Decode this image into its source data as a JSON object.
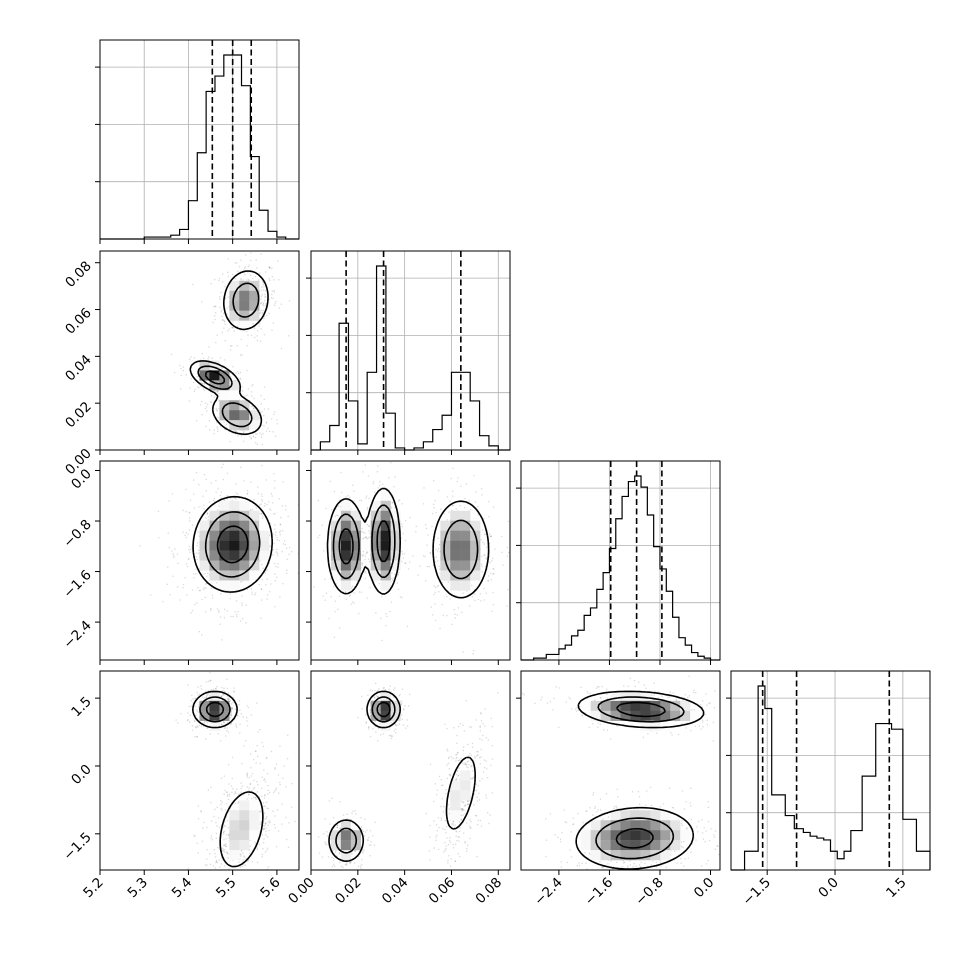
{
  "chart_data": {
    "type": "corner",
    "parameters": [
      {
        "range": [
          5.2,
          5.65
        ],
        "ticks": [
          5.2,
          5.3,
          5.4,
          5.5,
          5.6
        ],
        "tick_labels": [
          "5.2",
          "5.3",
          "5.4",
          "5.5",
          "5.6"
        ],
        "quantiles": [
          5.454,
          5.5,
          5.542
        ]
      },
      {
        "range": [
          0.0,
          0.085
        ],
        "ticks": [
          0.0,
          0.02,
          0.04,
          0.06,
          0.08
        ],
        "tick_labels": [
          "0.00",
          "0.02",
          "0.04",
          "0.06",
          "0.08"
        ],
        "quantiles": [
          0.015,
          0.031,
          0.064
        ]
      },
      {
        "range": [
          -3.0,
          0.15
        ],
        "ticks": [
          -2.4,
          -1.6,
          -0.8,
          0.0
        ],
        "tick_labels": [
          "−2.4",
          "−1.6",
          "−0.8",
          "0.0"
        ],
        "quantiles": [
          -1.58,
          -1.17,
          -0.77
        ]
      },
      {
        "range": [
          -2.3,
          2.1
        ],
        "ticks": [
          -1.5,
          0.0,
          1.5
        ],
        "tick_labels": [
          "−1.5",
          "0.0",
          "1.5"
        ],
        "quantiles": [
          -1.6,
          -0.85,
          1.2
        ]
      }
    ],
    "histograms": [
      {
        "edges": [
          5.2,
          5.3,
          5.36,
          5.38,
          5.4,
          5.42,
          5.44,
          5.46,
          5.48,
          5.5,
          5.52,
          5.54,
          5.56,
          5.58,
          5.6,
          5.62,
          5.65
        ],
        "counts": [
          0,
          1,
          2,
          5,
          20,
          45,
          77,
          85,
          96,
          96,
          80,
          43,
          15,
          4,
          1,
          0
        ]
      },
      {
        "edges": [
          0.0,
          0.004,
          0.008,
          0.012,
          0.016,
          0.02,
          0.024,
          0.028,
          0.032,
          0.036,
          0.04,
          0.044,
          0.048,
          0.052,
          0.056,
          0.06,
          0.064,
          0.068,
          0.072,
          0.076,
          0.08,
          0.085
        ],
        "counts": [
          0,
          4,
          12,
          62,
          24,
          3,
          38,
          90,
          18,
          1,
          0,
          1,
          4,
          10,
          17,
          38,
          38,
          24,
          7,
          2,
          0
        ]
      },
      {
        "edges": [
          -3.0,
          -2.8,
          -2.6,
          -2.4,
          -2.3,
          -2.2,
          -2.1,
          -2.0,
          -1.9,
          -1.8,
          -1.7,
          -1.6,
          -1.5,
          -1.4,
          -1.3,
          -1.2,
          -1.1,
          -1.0,
          -0.9,
          -0.8,
          -0.7,
          -0.6,
          -0.5,
          -0.4,
          -0.3,
          -0.2,
          -0.1,
          0.0,
          0.15
        ],
        "counts": [
          0,
          1,
          3,
          6,
          8,
          13,
          16,
          24,
          28,
          38,
          47,
          60,
          76,
          88,
          96,
          99,
          93,
          78,
          61,
          49,
          37,
          23,
          12,
          8,
          4,
          2,
          1,
          0
        ]
      },
      {
        "edges": [
          -2.3,
          -2.0,
          -1.7,
          -1.55,
          -1.4,
          -1.1,
          -0.9,
          -0.7,
          -0.55,
          -0.4,
          -0.25,
          -0.1,
          0.05,
          0.2,
          0.35,
          0.6,
          0.9,
          1.25,
          1.5,
          1.8,
          2.1
        ],
        "counts": [
          0,
          10,
          98,
          86,
          40,
          29,
          22,
          20,
          18,
          17,
          16,
          10,
          6,
          10,
          21,
          50,
          78,
          75,
          27,
          10
        ]
      }
    ],
    "pair_modes": [
      {
        "x": 0,
        "y": 1,
        "modes": [
          {
            "cx": 5.53,
            "cy": 0.064,
            "sx": 0.028,
            "sy": 0.007,
            "rho": 0.1,
            "w": 0.4
          },
          {
            "cx": 5.46,
            "cy": 0.031,
            "sx": 0.028,
            "sy": 0.0035,
            "rho": -0.5,
            "w": 0.3
          },
          {
            "cx": 5.51,
            "cy": 0.015,
            "sx": 0.03,
            "sy": 0.0045,
            "rho": -0.3,
            "w": 0.3
          }
        ]
      },
      {
        "x": 0,
        "y": 2,
        "modes": [
          {
            "cx": 5.5,
            "cy": -1.17,
            "sx": 0.045,
            "sy": 0.38,
            "rho": 0.05,
            "w": 1.0
          }
        ]
      },
      {
        "x": 1,
        "y": 2,
        "modes": [
          {
            "cx": 0.015,
            "cy": -1.2,
            "sx": 0.004,
            "sy": 0.38,
            "rho": 0.0,
            "w": 0.3
          },
          {
            "cx": 0.031,
            "cy": -1.12,
            "sx": 0.0035,
            "sy": 0.42,
            "rho": 0.0,
            "w": 0.3
          },
          {
            "cx": 0.064,
            "cy": -1.25,
            "sx": 0.0065,
            "sy": 0.42,
            "rho": 0.0,
            "w": 0.4
          }
        ]
      },
      {
        "x": 0,
        "y": 3,
        "modes": [
          {
            "cx": 5.46,
            "cy": 1.25,
            "sx": 0.025,
            "sy": 0.2,
            "rho": 0.0,
            "w": 0.4
          },
          {
            "cx": 5.52,
            "cy": -1.4,
            "sx": 0.035,
            "sy": 0.6,
            "rho": 0.35,
            "w": 0.6
          }
        ]
      },
      {
        "x": 1,
        "y": 3,
        "modes": [
          {
            "cx": 0.031,
            "cy": 1.25,
            "sx": 0.0035,
            "sy": 0.2,
            "rho": 0.0,
            "w": 0.3
          },
          {
            "cx": 0.015,
            "cy": -1.65,
            "sx": 0.004,
            "sy": 0.25,
            "rho": 0.0,
            "w": 0.3
          },
          {
            "cx": 0.064,
            "cy": -0.6,
            "sx": 0.005,
            "sy": 0.65,
            "rho": 0.5,
            "w": 0.4
          }
        ]
      },
      {
        "x": 2,
        "y": 3,
        "modes": [
          {
            "cx": -1.1,
            "cy": 1.25,
            "sx": 0.5,
            "sy": 0.2,
            "rho": -0.2,
            "w": 0.4
          },
          {
            "cx": -1.2,
            "cy": -1.6,
            "sx": 0.48,
            "sy": 0.35,
            "rho": 0.1,
            "w": 0.6
          }
        ]
      }
    ]
  }
}
